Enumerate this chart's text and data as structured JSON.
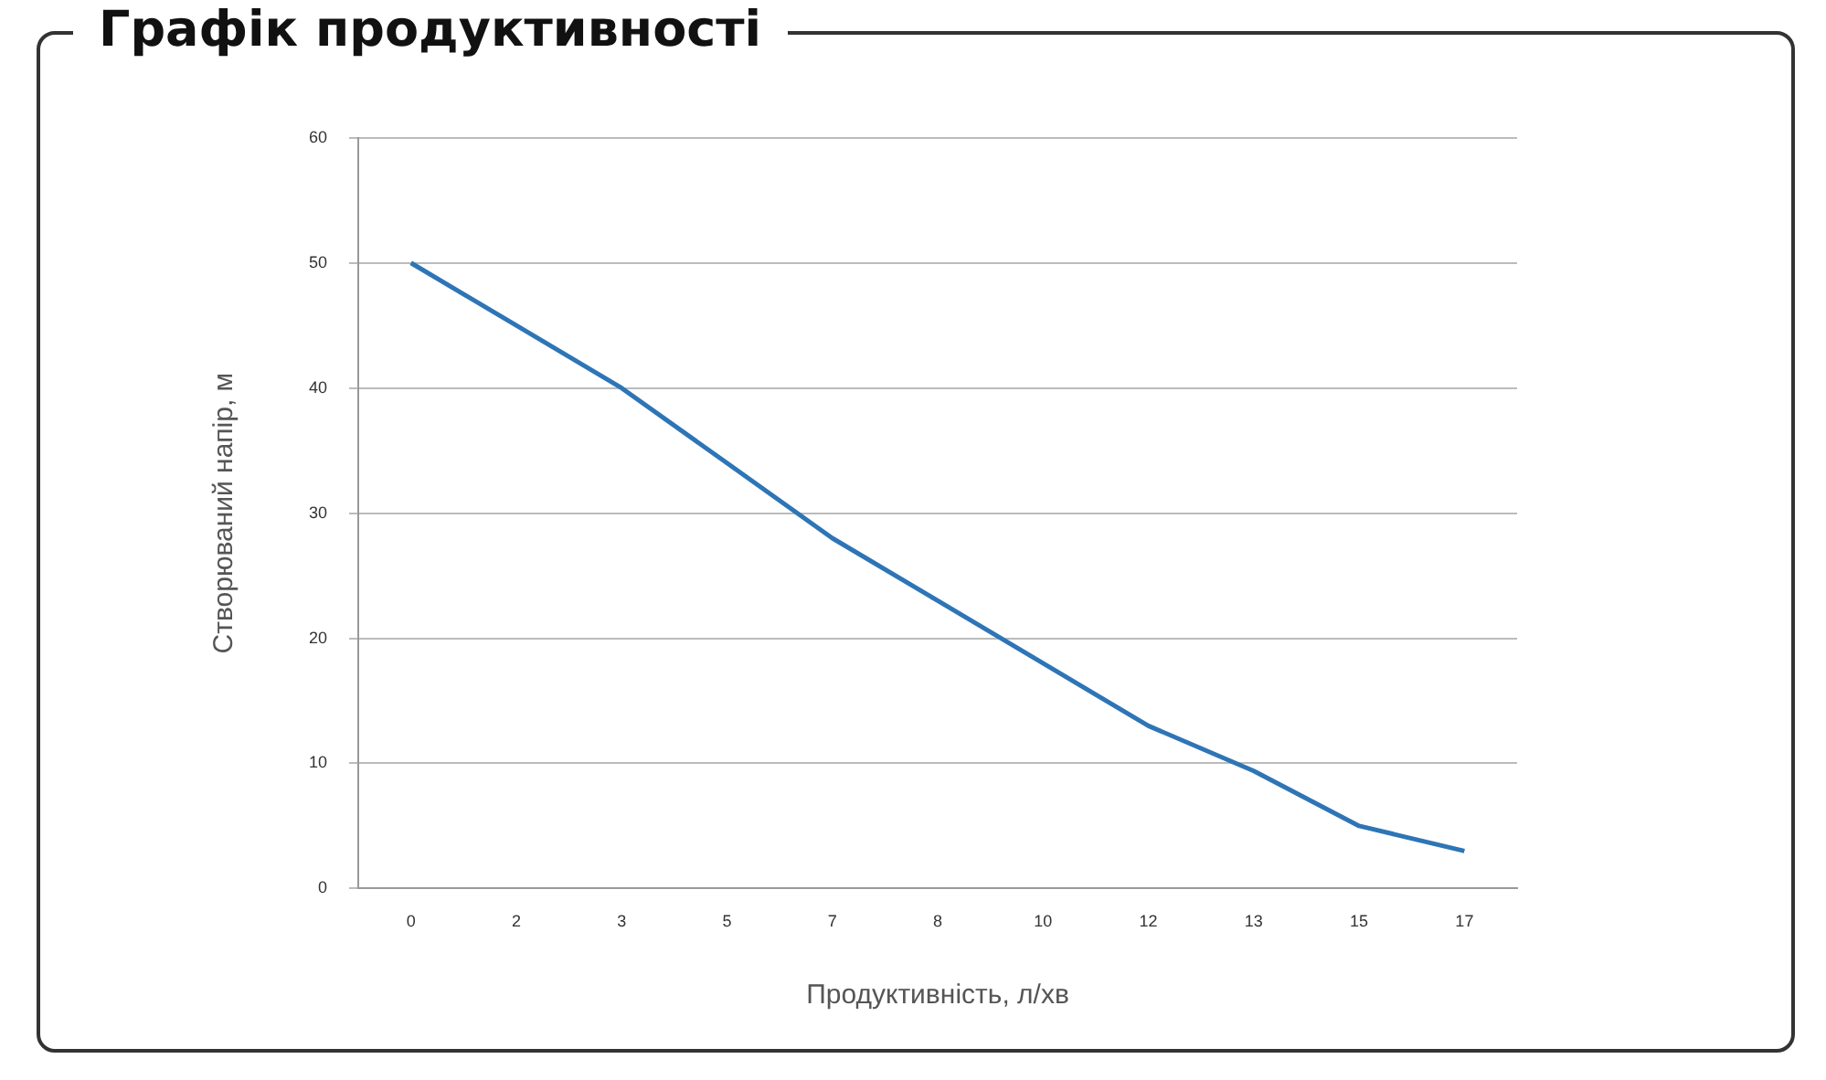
{
  "chart_data": {
    "type": "line",
    "title": "Графік продуктивності",
    "xlabel": "Продуктивність, л/хв",
    "ylabel": "Створюваний напір, м",
    "categories": [
      "0",
      "2",
      "3",
      "5",
      "7",
      "8",
      "10",
      "12",
      "13",
      "15",
      "17"
    ],
    "series": [
      {
        "color": "#2e75b6",
        "values": [
          50,
          45,
          40,
          34,
          28,
          23,
          18,
          13,
          9.4,
          5,
          3
        ]
      }
    ],
    "ylim": [
      0,
      60
    ],
    "yticks": [
      0,
      10,
      20,
      30,
      40,
      50,
      60
    ],
    "grid": "y",
    "legend": false,
    "marker": "none",
    "line_style": "solid"
  }
}
